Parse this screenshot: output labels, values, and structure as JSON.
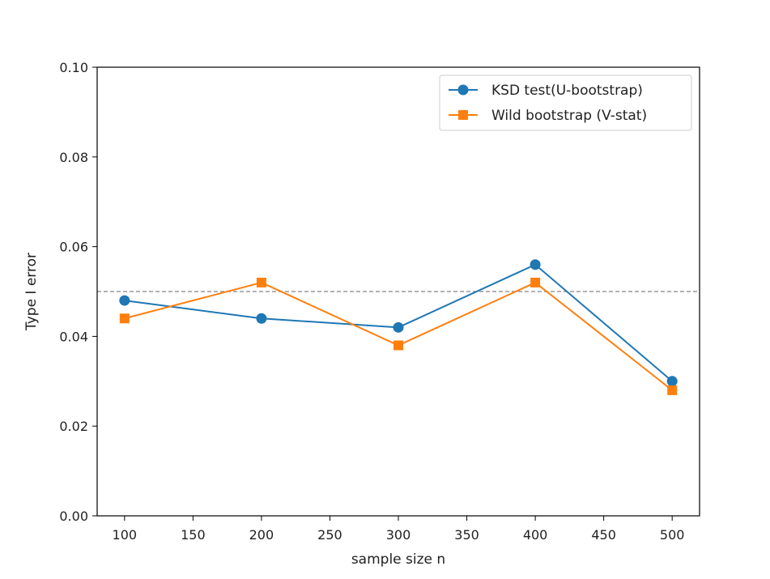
{
  "chart_data": {
    "type": "line",
    "title": "",
    "xlabel": "sample size n",
    "ylabel": "Type I error",
    "xlim": [
      80,
      520
    ],
    "ylim": [
      0.0,
      0.1
    ],
    "xticks": [
      "100",
      "150",
      "200",
      "250",
      "300",
      "350",
      "400",
      "450",
      "500"
    ],
    "yticks": [
      "0.00",
      "0.02",
      "0.04",
      "0.06",
      "0.08",
      "0.10"
    ],
    "reference_line": {
      "y": 0.05,
      "style": "dashed",
      "color": "#999999"
    },
    "grid": false,
    "legend_position": "top-right",
    "x": [
      100,
      200,
      300,
      400,
      500
    ],
    "series": [
      {
        "name": "KSD test(U-bootstrap)",
        "marker": "circle",
        "color": "#1f77b4",
        "values": [
          0.048,
          0.044,
          0.042,
          0.056,
          0.03
        ]
      },
      {
        "name": "Wild bootstrap (V-stat)",
        "marker": "square",
        "color": "#ff7f0e",
        "values": [
          0.044,
          0.052,
          0.038,
          0.052,
          0.028
        ]
      }
    ]
  }
}
